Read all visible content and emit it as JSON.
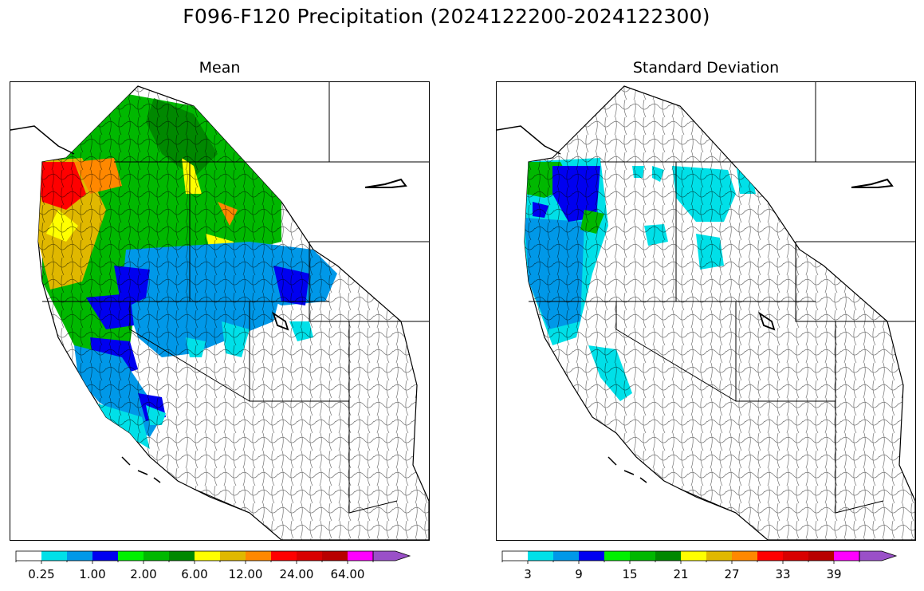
{
  "figure": {
    "title": "F096-F120 Precipitation (2024122200-2024122300)"
  },
  "panels": [
    {
      "title": "Mean",
      "region_values": [
        {
          "region": "Olympic Peninsula / NW Washington coast",
          "value_class": "24.00"
        },
        {
          "region": "Western Washington Cascades",
          "value_class": "12.00"
        },
        {
          "region": "Western Oregon / Coast Range",
          "value_class": "6.00"
        },
        {
          "region": "Northern Idaho / Western Montana",
          "value_class": "2.00"
        },
        {
          "region": "Northern California coast / Sierra",
          "value_class": "1.00"
        },
        {
          "region": "Northern Nevada / Southern Idaho",
          "value_class": "0.25"
        },
        {
          "region": "Southwest deserts",
          "value_class": "0"
        }
      ]
    },
    {
      "title": "Standard Deviation",
      "region_values": [
        {
          "region": "Olympic Peninsula / NW Washington coast",
          "value_class": "9"
        },
        {
          "region": "Western Washington Cascades",
          "value_class": "15"
        },
        {
          "region": "Western Oregon coast",
          "value_class": "3"
        },
        {
          "region": "Northern Idaho / Western Montana",
          "value_class": "3"
        },
        {
          "region": "Remaining basins",
          "value_class": "0"
        }
      ]
    }
  ],
  "colorbars": [
    {
      "name": "mean",
      "tick_labels": [
        "0.25",
        "1.00",
        "2.00",
        "6.00",
        "12.00",
        "24.00",
        "64.00"
      ],
      "colors": [
        "#ffffff",
        "#00e0e8",
        "#0098e8",
        "#0000f0",
        "#00f000",
        "#00b800",
        "#008800",
        "#ffff00",
        "#e0b800",
        "#ff8800",
        "#ff0000",
        "#d80000",
        "#b80000",
        "#ff00ff",
        "#9a50c8"
      ]
    },
    {
      "name": "std",
      "tick_labels": [
        "3",
        "9",
        "15",
        "21",
        "27",
        "33",
        "39"
      ],
      "colors": [
        "#ffffff",
        "#00e0e8",
        "#0098e8",
        "#0000f0",
        "#00f000",
        "#00b800",
        "#008800",
        "#ffff00",
        "#e0b800",
        "#ff8800",
        "#ff0000",
        "#d80000",
        "#b80000",
        "#ff00ff",
        "#9a50c8"
      ]
    }
  ]
}
